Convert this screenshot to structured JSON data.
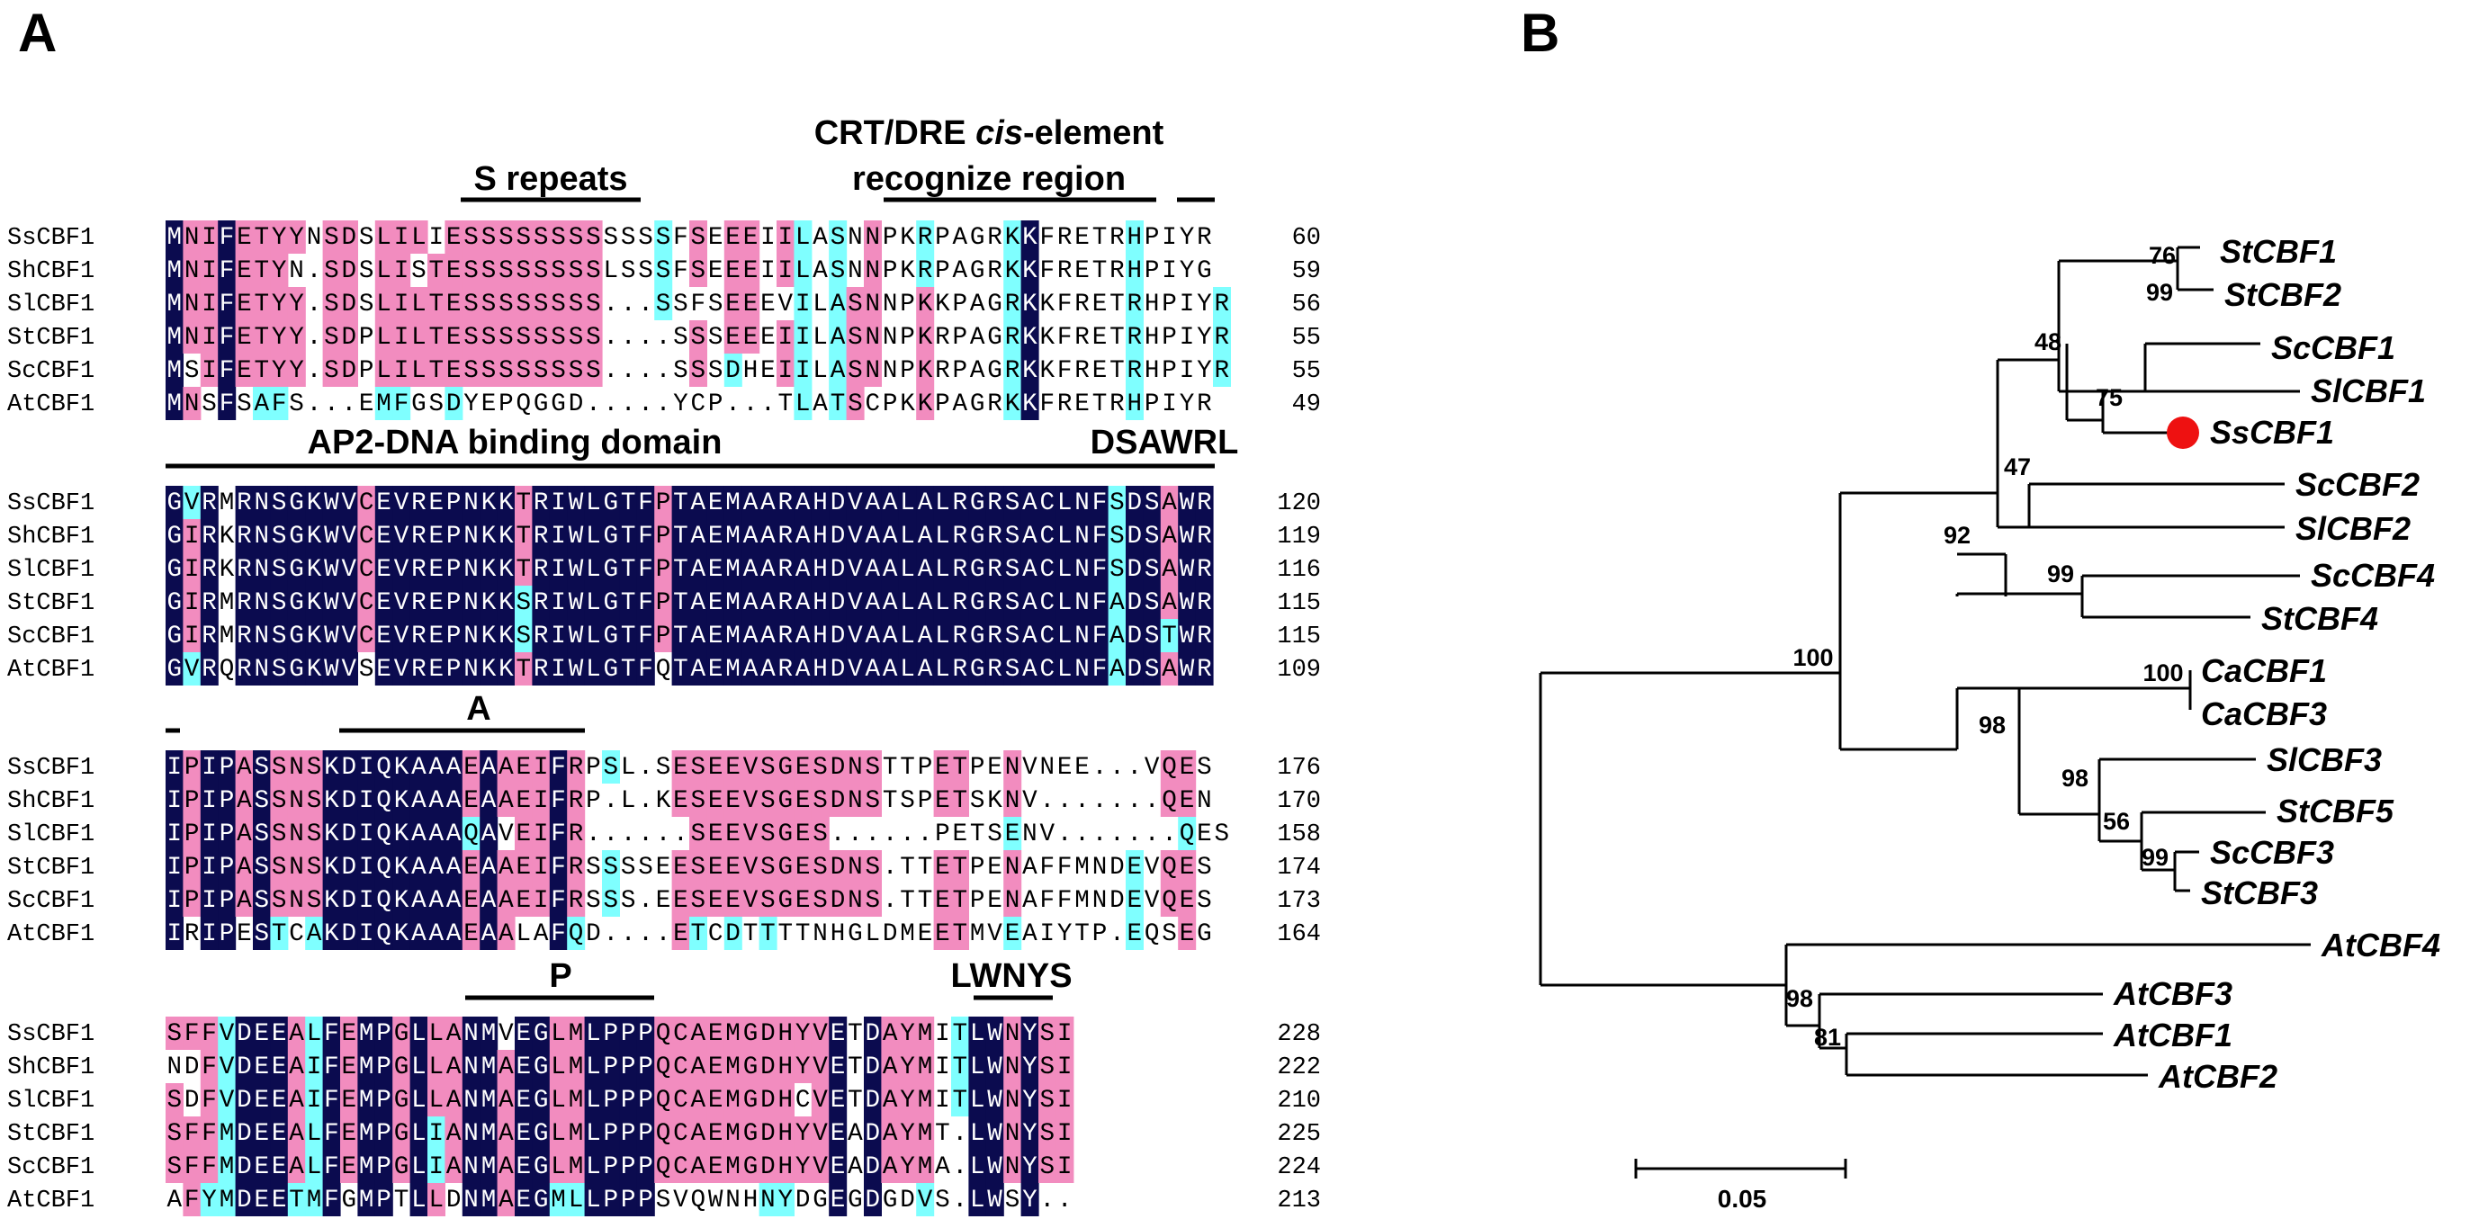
{
  "panel_labels": {
    "a": "A",
    "b": "B"
  },
  "colors": {
    "identical": "#0b0b4f",
    "strong": "#f28cbf",
    "weak": "#7fffff",
    "dot": "#ee1111"
  },
  "alignment": {
    "blocks": [
      {
        "seqs": [
          {
            "name": "SsCBF1",
            "seq": "MNIFETYYNSDSLILIESSSSSSSSSSSSFSEEEIILASNNPKRPAGRKKFRETRHPIYR",
            "end": "60"
          },
          {
            "name": "ShCBF1",
            "seq": "MNIFETYN.SDSLISTESSSSSSSSLSSSFSEEEIILASNNPKRPAGRKKFRETRHPIYG",
            "end": "59"
          },
          {
            "name": "SlCBF1",
            "seq": "MNIFETYY.SDSLILTESSSSSSSS...SSFSEEEVILASNNPKKPAGRKKFRETRHPIYR",
            "end": "56"
          },
          {
            "name": "StCBF1",
            "seq": "MNIFETYY.SDPLILTESSSSSSSS....SSSEEEIILASNNPKRPAGRKKFRETRHPIYR",
            "end": "55"
          },
          {
            "name": "ScCBF1",
            "seq": "MSIFETYY.SDPLILTESSSSSSSS....SSSDHEIILASNNPKRPAGRKKFRETRHPIYR",
            "end": "55"
          },
          {
            "name": "AtCBF1",
            "seq": "MNSFSAFS...EMFGSDYEPQGGD.....YCP...TLATSCPKKPAGRKKFRETRHPIYR",
            "end": "49"
          }
        ],
        "annotations": [
          {
            "text": "S repeats"
          },
          {
            "text": "CRT/DRE "
          },
          {
            "text": "cis"
          },
          {
            "text": "-element"
          },
          {
            "text": "recognize region"
          }
        ]
      },
      {
        "seqs": [
          {
            "name": "SsCBF1",
            "seq": "GVRMRNSGKWVCEVREPNKKTRIWLGTFPTAEMAARAHDVAALALRGRSACLNFSDSAWR",
            "end": "120"
          },
          {
            "name": "ShCBF1",
            "seq": "GIRKRNSGKWVCEVREPNKKTRIWLGTFPTAEMAARAHDVAALALRGRSACLNFSDSAWR",
            "end": "119"
          },
          {
            "name": "SlCBF1",
            "seq": "GIRKRNSGKWVCEVREPNKKTRIWLGTFPTAEMAARAHDVAALALRGRSACLNFSDSAWR",
            "end": "116"
          },
          {
            "name": "StCBF1",
            "seq": "GIRMRNSGKWVCEVREPNKKSRIWLGTFPTAEMAARAHDVAALALRGRSACLNFADSAWR",
            "end": "115"
          },
          {
            "name": "ScCBF1",
            "seq": "GIRMRNSGKWVCEVREPNKKSRIWLGTFPTAEMAARAHDVAALALRGRSACLNFADSTWR",
            "end": "115"
          },
          {
            "name": "AtCBF1",
            "seq": "GVRQRNSGKWVSEVREPNKKTRIWLGTFQTAEMAARAHDVAALALRGRSACLNFADSAWR",
            "end": "109"
          }
        ],
        "annotations": [
          {
            "text": "AP2-DNA binding domain"
          },
          {
            "text": "DSAWRL"
          }
        ]
      },
      {
        "seqs": [
          {
            "name": "SsCBF1",
            "seq": "IPIPASSNSKDIQKAAAEAAEIFRPSL.SESEEVSGESDNSTTPETPENVNEE...VQES",
            "end": "176"
          },
          {
            "name": "ShCBF1",
            "seq": "IPIPASSNSKDIQKAAAEAAEIFRP.L.KESEEVSGESDNSTSPETSKNV.......QEN",
            "end": "170"
          },
          {
            "name": "SlCBF1",
            "seq": "IPIPASSNSKDIQKAAAQAVEIFR......SEEVSGES......PETSENV.......QES",
            "end": "158"
          },
          {
            "name": "StCBF1",
            "seq": "IPIPASSNSKDIQKAAAEAAEIFRSSSSEESEEVSGESDNS.TTETPENAFFMNDEVQES",
            "end": "174"
          },
          {
            "name": "ScCBF1",
            "seq": "IPIPASSNSKDIQKAAAEAAEIFRSSS.EESEEVSGESDNS.TTETPENAFFMNDEVQES",
            "end": "173"
          },
          {
            "name": "AtCBF1",
            "seq": "IRIPESTCAKDIQKAAAEAALAFQD....ETCDTTTTNHGLDMEETMVEAIYTP.EQSEG",
            "end": "164"
          }
        ],
        "annotations": [
          {
            "text": "A"
          }
        ]
      },
      {
        "seqs": [
          {
            "name": "SsCBF1",
            "seq": "SFFVDEEALFEMPGLLANMVEGLMLPPPQCAEMGDHYVETDAYMITLWNYSI",
            "end": "228"
          },
          {
            "name": "ShCBF1",
            "seq": "NDFVDEEAIFEMPGLLANMAEGLMLPPPQCAEMGDHYVETDAYMITLWNYSI",
            "end": "222"
          },
          {
            "name": "SlCBF1",
            "seq": "SDFVDEEAIFEMPGLLANMAEGLMLPPPQCAEMGDHCVETDAYMITLWNYSI",
            "end": "210"
          },
          {
            "name": "StCBF1",
            "seq": "SFFMDEEALFEMPGLIANMAEGLMLPPPQCAEMGDHYVEADAYMT.LWNYSI",
            "end": "225"
          },
          {
            "name": "ScCBF1",
            "seq": "SFFMDEEALFEMPGLIANMAEGLMLPPPQCAEMGDHYVEADAYMA.LWNYSI",
            "end": "224"
          },
          {
            "name": "AtCBF1",
            "seq": "AFYMDEETMFGMPTLLDNMAEGMLLPPPSVQWNHNYDGEGDGDVS.LWSY..",
            "end": "213"
          }
        ],
        "annotations": [
          {
            "text": "P"
          },
          {
            "text": "LWNYS"
          }
        ]
      }
    ]
  },
  "tree": {
    "tips": [
      {
        "label": "StCBF1"
      },
      {
        "label": "StCBF2"
      },
      {
        "label": "ScCBF1"
      },
      {
        "label": "SlCBF1"
      },
      {
        "label": "SsCBF1"
      },
      {
        "label": "ScCBF2"
      },
      {
        "label": "SlCBF2"
      },
      {
        "label": "ScCBF4"
      },
      {
        "label": "StCBF4"
      },
      {
        "label": "CaCBF1"
      },
      {
        "label": "CaCBF3"
      },
      {
        "label": "SlCBF3"
      },
      {
        "label": "StCBF5"
      },
      {
        "label": "ScCBF3"
      },
      {
        "label": "StCBF3"
      },
      {
        "label": "AtCBF4"
      },
      {
        "label": "AtCBF3"
      },
      {
        "label": "AtCBF1"
      },
      {
        "label": "AtCBF2"
      }
    ],
    "bootstrap": [
      "76",
      "99",
      "48",
      "75",
      "47",
      "92",
      "100",
      "99",
      "100",
      "98",
      "98",
      "56",
      "99",
      "98",
      "81"
    ],
    "highlighted_tip": "SsCBF1",
    "scale_bar": {
      "value": 0.05,
      "label": "0.05"
    }
  }
}
